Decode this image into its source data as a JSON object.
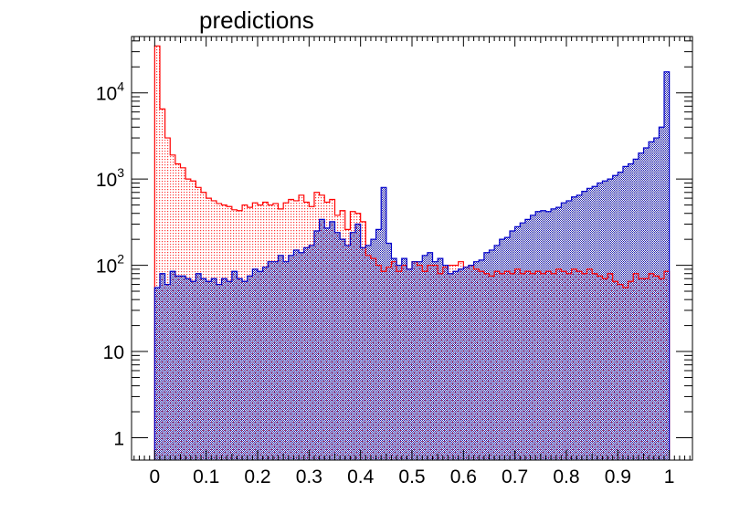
{
  "chart_data": {
    "type": "bar",
    "title": "predictions",
    "xlabel": "",
    "ylabel": "",
    "xlim": [
      -0.045,
      1.045
    ],
    "ylim": [
      0.55,
      45000
    ],
    "log_scale_y": true,
    "grid": false,
    "bin_width": 0.01,
    "x_ticks": [
      "0",
      "0.1",
      "0.2",
      "0.3",
      "0.4",
      "0.5",
      "0.6",
      "0.7",
      "0.8",
      "0.9",
      "1"
    ],
    "x_tick_values": [
      0,
      0.1,
      0.2,
      0.3,
      0.4,
      0.5,
      0.6,
      0.7,
      0.8,
      0.9,
      1
    ],
    "y_ticks": [
      {
        "value": 1,
        "base": "1",
        "exp": ""
      },
      {
        "value": 10,
        "base": "10",
        "exp": ""
      },
      {
        "value": 100,
        "base": "10",
        "exp": "2"
      },
      {
        "value": 1000,
        "base": "10",
        "exp": "3"
      },
      {
        "value": 10000,
        "base": "10",
        "exp": "4"
      }
    ],
    "series": [
      {
        "color": "#ff0000",
        "hatch": "dots",
        "values": [
          35000,
          6500,
          3000,
          1900,
          1500,
          1350,
          1000,
          950,
          800,
          700,
          600,
          560,
          520,
          500,
          480,
          440,
          430,
          500,
          470,
          530,
          500,
          540,
          500,
          520,
          450,
          530,
          580,
          560,
          650,
          540,
          480,
          700,
          650,
          540,
          580,
          380,
          430,
          260,
          420,
          400,
          320,
          130,
          120,
          100,
          85,
          95,
          110,
          85,
          100,
          90,
          110,
          100,
          85,
          100,
          100,
          80,
          95,
          100,
          100,
          110,
          95,
          100,
          90,
          85,
          80,
          75,
          85,
          80,
          85,
          80,
          90,
          80,
          85,
          80,
          85,
          80,
          85,
          80,
          90,
          85,
          80,
          90,
          85,
          80,
          90,
          80,
          75,
          70,
          80,
          65,
          60,
          55,
          65,
          80,
          70,
          70,
          80,
          75,
          70,
          85
        ]
      },
      {
        "color": "#0000ff",
        "hatch": "dense",
        "values": [
          55,
          80,
          60,
          85,
          75,
          75,
          70,
          65,
          80,
          70,
          65,
          70,
          60,
          70,
          65,
          85,
          70,
          65,
          75,
          90,
          85,
          95,
          110,
          110,
          130,
          110,
          130,
          150,
          140,
          160,
          170,
          250,
          340,
          270,
          320,
          240,
          200,
          170,
          240,
          300,
          160,
          170,
          200,
          260,
          800,
          180,
          120,
          100,
          120,
          90,
          110,
          110,
          130,
          140,
          110,
          120,
          100,
          80,
          85,
          90,
          95,
          100,
          110,
          115,
          140,
          150,
          170,
          200,
          210,
          250,
          280,
          310,
          340,
          380,
          420,
          430,
          420,
          450,
          470,
          530,
          560,
          620,
          650,
          720,
          780,
          820,
          900,
          950,
          1000,
          1100,
          1200,
          1400,
          1500,
          1700,
          2000,
          2300,
          2700,
          3000,
          4000,
          17500
        ]
      }
    ]
  }
}
